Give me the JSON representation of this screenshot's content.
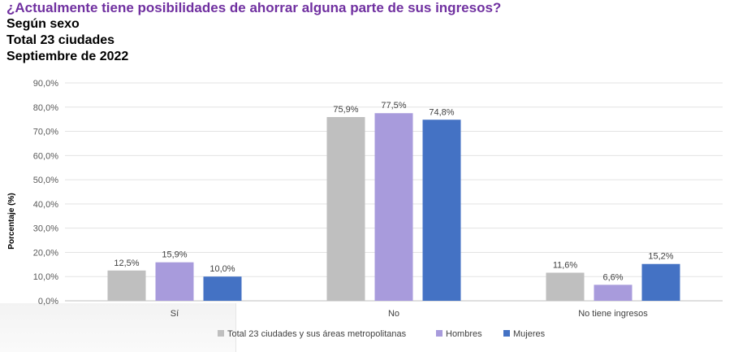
{
  "header": {
    "title": "¿Actualmente tiene posibilidades de ahorrar alguna parte de sus ingresos?",
    "subtitle_1": "Según sexo",
    "subtitle_2": "Total 23 ciudades",
    "subtitle_3": "Septiembre de 2022"
  },
  "colors": {
    "title": "#7030a0",
    "total": "#bfbfbf",
    "hombres": "#a89bdc",
    "mujeres": "#4472c4"
  },
  "chart_data": {
    "type": "bar",
    "title": "¿Actualmente tiene posibilidades de ahorrar alguna parte de sus ingresos?",
    "xlabel": "",
    "ylabel": "Porcentaje (%)",
    "categories": [
      "Sí",
      "No",
      "No tiene ingresos"
    ],
    "series": [
      {
        "name": "Total 23 ciudades y sus áreas metropolitanas",
        "values": [
          12.5,
          75.9,
          11.6
        ],
        "labels": [
          "12,5%",
          "75,9%",
          "11,6%"
        ],
        "color": "#bfbfbf"
      },
      {
        "name": "Hombres",
        "values": [
          15.9,
          77.5,
          6.6
        ],
        "labels": [
          "15,9%",
          "77,5%",
          "6,6%"
        ],
        "color": "#a89bdc"
      },
      {
        "name": "Mujeres",
        "values": [
          10.0,
          74.8,
          15.2
        ],
        "labels": [
          "10,0%",
          "74,8%",
          "15,2%"
        ],
        "color": "#4472c4"
      }
    ],
    "ylim": [
      0,
      90
    ],
    "yticks": [
      0,
      10,
      20,
      30,
      40,
      50,
      60,
      70,
      80,
      90
    ],
    "ytick_labels": [
      "0,0%",
      "10,0%",
      "20,0%",
      "30,0%",
      "40,0%",
      "50,0%",
      "60,0%",
      "70,0%",
      "80,0%",
      "90,0%"
    ],
    "grid": true,
    "legend": "bottom"
  }
}
